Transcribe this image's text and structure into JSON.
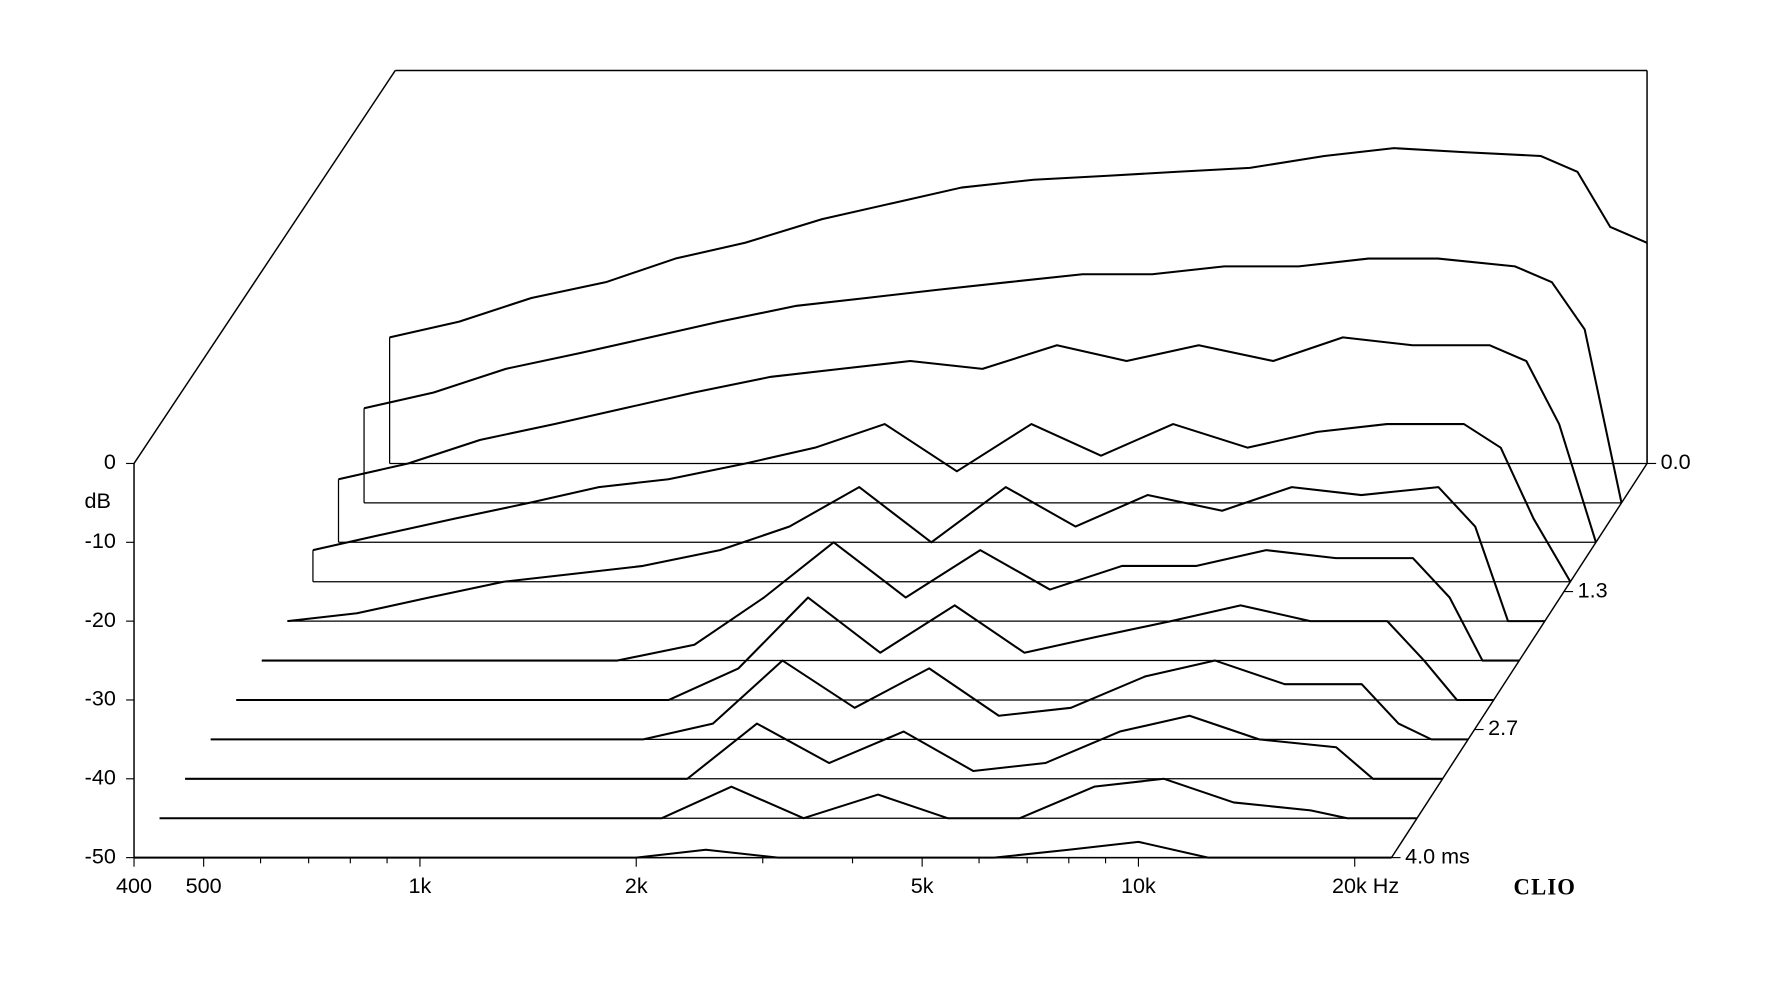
{
  "chart_data": {
    "type": "waterfall",
    "color": "#000000",
    "y_label": "dB",
    "brand": "CLIO",
    "xscale": "log",
    "xlim": [
      400,
      22500
    ],
    "xticks": [
      400,
      500,
      {
        "value": 1000,
        "label": "1k"
      },
      {
        "value": 2000,
        "label": "2k"
      },
      {
        "value": 5000,
        "label": "5k"
      },
      {
        "value": 10000,
        "label": "10k"
      },
      {
        "value": 20000,
        "label": "20k Hz"
      }
    ],
    "xminorticks": [
      600,
      700,
      800,
      900,
      3000,
      4000,
      6000,
      7000,
      8000,
      9000
    ],
    "ylim": [
      -50,
      0
    ],
    "yticks": [
      0,
      -10,
      -20,
      -30,
      -40,
      -50
    ],
    "zlim": [
      0,
      4
    ],
    "zticks": [
      {
        "value": 0,
        "label": "0.0"
      },
      1.3,
      2.7,
      {
        "value": 4,
        "label": "4.0 ms"
      }
    ],
    "x": [
      400,
      500,
      630,
      800,
      1000,
      1250,
      1600,
      2000,
      2500,
      3150,
      4000,
      5000,
      6300,
      8000,
      10000,
      12500,
      16000,
      18000,
      20000,
      22500
    ],
    "series": [
      {
        "time": 0,
        "values": [
          -34,
          -32,
          -29,
          -27,
          -24,
          -22,
          -19,
          -17,
          -15,
          -14,
          -13.5,
          -13,
          -12.5,
          -11,
          -10,
          -10.5,
          -11,
          -13,
          -20,
          -22
        ]
      },
      {
        "time": 0.4,
        "values": [
          -38,
          -36,
          -33,
          -31,
          -29,
          -27,
          -25,
          -24,
          -23,
          -22,
          -21,
          -21,
          -20,
          -20,
          -19,
          -19,
          -20,
          -22,
          -28,
          -50
        ]
      },
      {
        "time": 0.8,
        "values": [
          -42,
          -40,
          -37,
          -35,
          -33,
          -31,
          -29,
          -28,
          -27,
          -28,
          -25,
          -27,
          -25,
          -27,
          -24,
          -25,
          -25,
          -27,
          -35,
          -50
        ]
      },
      {
        "time": 1.2,
        "values": [
          -46,
          -44,
          -42,
          -40,
          -38,
          -37,
          -35,
          -33,
          -30,
          -36,
          -30,
          -34,
          -30,
          -33,
          -31,
          -30,
          -30,
          -33,
          -42,
          -50
        ]
      },
      {
        "time": 1.6,
        "values": [
          -50,
          -49,
          -47,
          -45,
          -44,
          -43,
          -41,
          -38,
          -33,
          -40,
          -33,
          -38,
          -34,
          -36,
          -33,
          -34,
          -33,
          -38,
          -50,
          -50
        ]
      },
      {
        "time": 2.0,
        "values": [
          -50,
          -50,
          -50,
          -50,
          -50,
          -50,
          -48,
          -42,
          -35,
          -42,
          -36,
          -41,
          -38,
          -38,
          -36,
          -37,
          -37,
          -42,
          -50,
          -50
        ]
      },
      {
        "time": 2.4,
        "values": [
          -50,
          -50,
          -50,
          -50,
          -50,
          -50,
          -50,
          -46,
          -37,
          -44,
          -38,
          -44,
          -42,
          -40,
          -38,
          -40,
          -40,
          -45,
          -50,
          -50
        ]
      },
      {
        "time": 2.8,
        "values": [
          -50,
          -50,
          -50,
          -50,
          -50,
          -50,
          -50,
          -48,
          -40,
          -46,
          -41,
          -47,
          -46,
          -42,
          -40,
          -43,
          -43,
          -48,
          -50,
          -50
        ]
      },
      {
        "time": 3.2,
        "values": [
          -50,
          -50,
          -50,
          -50,
          -50,
          -50,
          -50,
          -50,
          -43,
          -48,
          -44,
          -49,
          -48,
          -44,
          -42,
          -45,
          -46,
          -50,
          -50,
          -50
        ]
      },
      {
        "time": 3.6,
        "values": [
          -50,
          -50,
          -50,
          -50,
          -50,
          -50,
          -50,
          -50,
          -46,
          -50,
          -47,
          -50,
          -50,
          -46,
          -45,
          -48,
          -49,
          -50,
          -50,
          -50
        ]
      },
      {
        "time": 4.0,
        "values": [
          -50,
          -50,
          -50,
          -50,
          -50,
          -50,
          -50,
          -50,
          -49,
          -50,
          -50,
          -50,
          -50,
          -49,
          -48,
          -50,
          -50,
          -50,
          -50,
          -50
        ]
      }
    ]
  }
}
